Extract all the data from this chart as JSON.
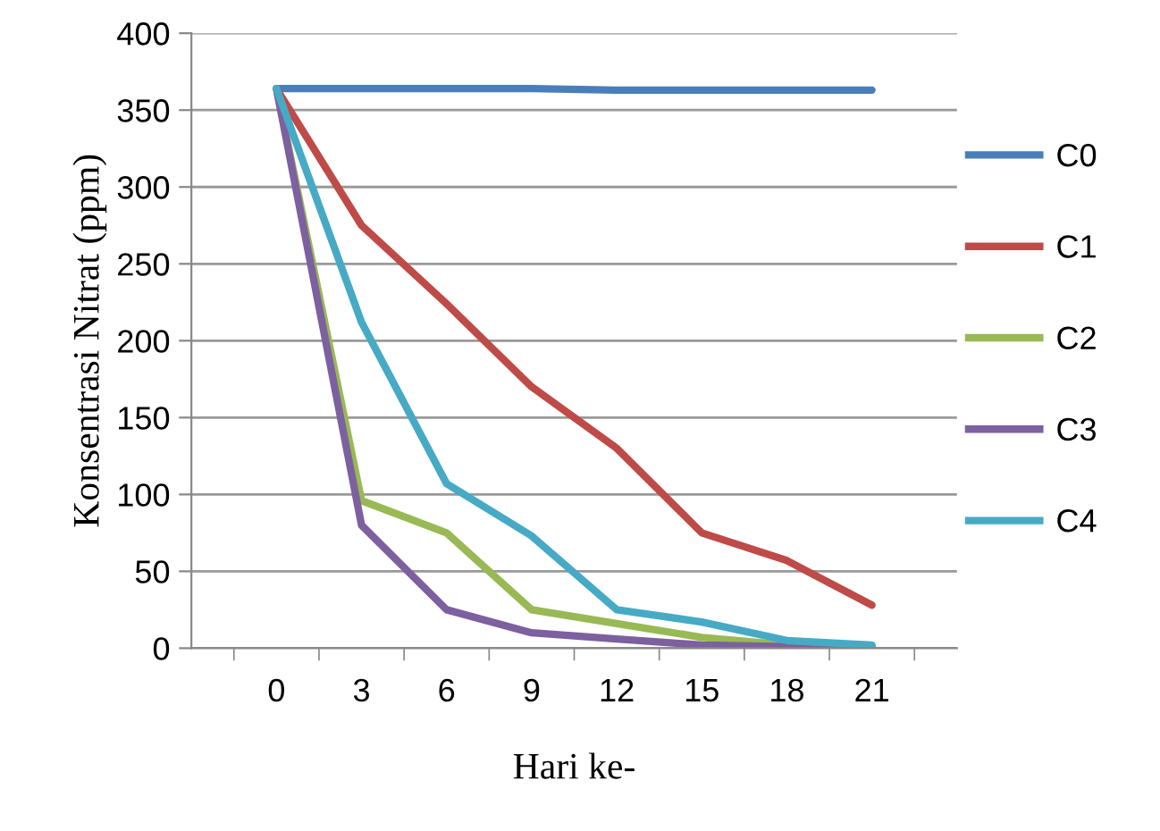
{
  "chart_data": {
    "type": "line",
    "xlabel": "Hari ke-",
    "ylabel": "Konsentrasi Nitrat (ppm)",
    "categories": [
      "0",
      "3",
      "6",
      "9",
      "12",
      "15",
      "18",
      "21"
    ],
    "series": [
      {
        "name": "C0",
        "color": "#4a7ebb",
        "values": [
          364,
          364,
          364,
          364,
          363,
          363,
          363,
          363
        ]
      },
      {
        "name": "C1",
        "color": "#be4b48",
        "values": [
          364,
          275,
          224,
          170,
          130,
          75,
          57,
          28
        ]
      },
      {
        "name": "C2",
        "color": "#98b954",
        "values": [
          364,
          96,
          75,
          25,
          16,
          7,
          2,
          1
        ]
      },
      {
        "name": "C3",
        "color": "#7d60a0",
        "values": [
          364,
          80,
          25,
          10,
          6,
          2,
          1,
          1
        ]
      },
      {
        "name": "C4",
        "color": "#46aac5",
        "values": [
          364,
          212,
          107,
          73,
          25,
          17,
          5,
          2
        ]
      }
    ],
    "ylim": [
      0,
      400
    ],
    "yticks": [
      0,
      50,
      100,
      150,
      200,
      250,
      300,
      350,
      400
    ],
    "grid": "y",
    "legend": "right",
    "marker": "none",
    "line_style": "solid"
  }
}
